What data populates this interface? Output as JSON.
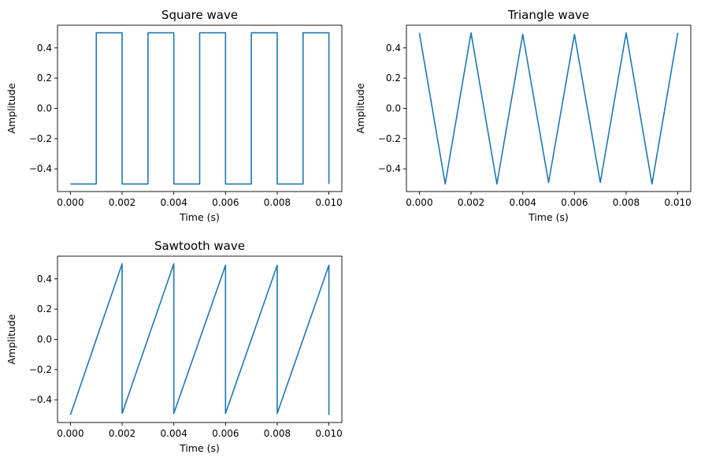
{
  "figure": {
    "background": "#ffffff",
    "line_color": "#1f77b4"
  },
  "chart_data": [
    {
      "type": "line",
      "title": "Square wave",
      "xlabel": "Time (s)",
      "ylabel": "Amplitude",
      "xlim": [
        -0.0005,
        0.0105
      ],
      "ylim": [
        -0.55,
        0.55
      ],
      "xticks": [
        0,
        0.002,
        0.004,
        0.006,
        0.008,
        0.01
      ],
      "xtick_labels": [
        "0.000",
        "0.002",
        "0.004",
        "0.006",
        "0.008",
        "0.010"
      ],
      "yticks": [
        -0.4,
        -0.2,
        0,
        0.2,
        0.4
      ],
      "ytick_labels": [
        "−0.4",
        "−0.2",
        "0.0",
        "0.2",
        "0.4"
      ],
      "grid": false,
      "series": [
        {
          "color": "#1f77b4",
          "x": [
            0,
            0.001,
            0.001,
            0.002,
            0.002,
            0.003,
            0.003,
            0.004,
            0.004,
            0.005,
            0.005,
            0.006,
            0.006,
            0.007,
            0.007,
            0.008,
            0.008,
            0.009,
            0.009,
            0.01,
            0.01
          ],
          "y": [
            -0.5,
            -0.5,
            0.5,
            0.5,
            -0.5,
            -0.5,
            0.5,
            0.5,
            -0.5,
            -0.5,
            0.5,
            0.5,
            -0.5,
            -0.5,
            0.5,
            0.5,
            -0.5,
            -0.5,
            0.5,
            0.5,
            -0.5
          ]
        }
      ]
    },
    {
      "type": "line",
      "title": "Triangle wave",
      "xlabel": "Time (s)",
      "ylabel": "Amplitude",
      "xlim": [
        -0.0005,
        0.0105
      ],
      "ylim": [
        -0.55,
        0.55
      ],
      "xticks": [
        0,
        0.002,
        0.004,
        0.006,
        0.008,
        0.01
      ],
      "xtick_labels": [
        "0.000",
        "0.002",
        "0.004",
        "0.006",
        "0.008",
        "0.010"
      ],
      "yticks": [
        -0.4,
        -0.2,
        0,
        0.2,
        0.4
      ],
      "ytick_labels": [
        "−0.4",
        "−0.2",
        "0.0",
        "0.2",
        "0.4"
      ],
      "grid": false,
      "series": [
        {
          "color": "#1f77b4",
          "x": [
            0,
            0.001,
            0.002,
            0.003,
            0.004,
            0.005,
            0.006,
            0.007,
            0.008,
            0.009,
            0.01
          ],
          "y": [
            0.5,
            -0.5,
            0.5,
            -0.5,
            0.49,
            -0.49,
            0.49,
            -0.49,
            0.5,
            -0.5,
            0.5
          ]
        }
      ]
    },
    {
      "type": "line",
      "title": "Sawtooth wave",
      "xlabel": "Time (s)",
      "ylabel": "Amplitude",
      "xlim": [
        -0.0005,
        0.0105
      ],
      "ylim": [
        -0.55,
        0.55
      ],
      "xticks": [
        0,
        0.002,
        0.004,
        0.006,
        0.008,
        0.01
      ],
      "xtick_labels": [
        "0.000",
        "0.002",
        "0.004",
        "0.006",
        "0.008",
        "0.010"
      ],
      "yticks": [
        -0.4,
        -0.2,
        0,
        0.2,
        0.4
      ],
      "ytick_labels": [
        "−0.4",
        "−0.2",
        "0.0",
        "0.2",
        "0.4"
      ],
      "grid": false,
      "series": [
        {
          "color": "#1f77b4",
          "x": [
            0,
            0.002,
            0.002,
            0.004,
            0.004,
            0.006,
            0.006,
            0.008,
            0.008,
            0.01,
            0.01
          ],
          "y": [
            -0.5,
            0.5,
            -0.49,
            0.5,
            -0.49,
            0.49,
            -0.49,
            0.49,
            -0.49,
            0.49,
            -0.5
          ]
        }
      ]
    }
  ]
}
